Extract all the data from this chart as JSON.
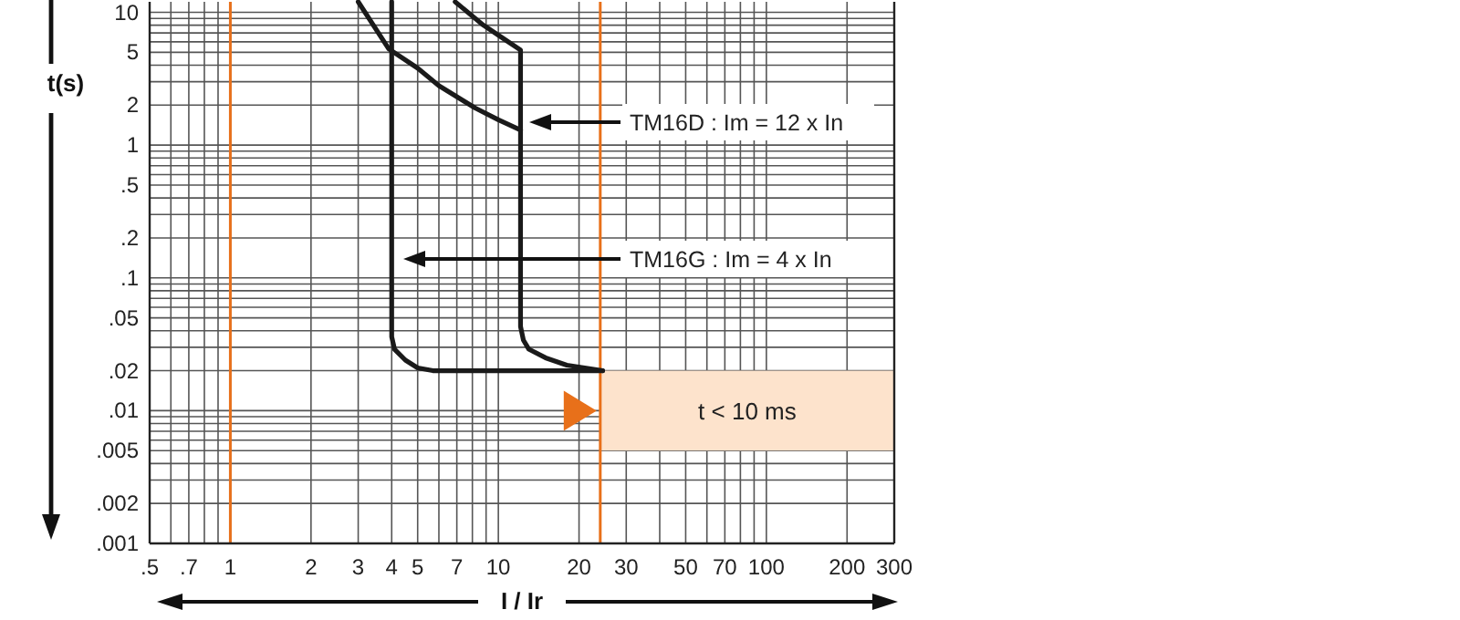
{
  "chart_data": {
    "type": "line",
    "xlabel": "I / Ir",
    "ylabel": "t(s)",
    "log": "xy",
    "grid": true,
    "marker": "none",
    "line_style": "solid",
    "xlim": [
      0.5,
      300
    ],
    "ylim": [
      0.001,
      12
    ],
    "xticks": [
      {
        "value": 0.5,
        "label": ".5"
      },
      {
        "value": 0.6,
        "label": null
      },
      {
        "value": 0.7,
        "label": ".7"
      },
      {
        "value": 0.8,
        "label": null
      },
      {
        "value": 0.9,
        "label": null
      },
      1,
      2,
      3,
      4,
      5,
      {
        "value": 6,
        "label": null
      },
      7,
      {
        "value": 8,
        "label": null
      },
      {
        "value": 9,
        "label": null
      },
      10,
      20,
      30,
      {
        "value": 40,
        "label": null
      },
      50,
      {
        "value": 60,
        "label": null
      },
      70,
      {
        "value": 80,
        "label": null
      },
      {
        "value": 90,
        "label": null
      },
      100,
      200,
      300
    ],
    "yticks": [
      {
        "value": 0.001,
        "label": ".001"
      },
      {
        "value": 0.002,
        "label": ".002"
      },
      {
        "value": 0.003,
        "label": null
      },
      {
        "value": 0.004,
        "label": null
      },
      {
        "value": 0.005,
        "label": ".005"
      },
      {
        "value": 0.006,
        "label": null
      },
      {
        "value": 0.007,
        "label": null
      },
      {
        "value": 0.008,
        "label": null
      },
      {
        "value": 0.009,
        "label": null
      },
      {
        "value": 0.01,
        "label": ".01"
      },
      {
        "value": 0.02,
        "label": ".02"
      },
      {
        "value": 0.03,
        "label": null
      },
      {
        "value": 0.04,
        "label": null
      },
      {
        "value": 0.05,
        "label": ".05"
      },
      {
        "value": 0.06,
        "label": null
      },
      {
        "value": 0.07,
        "label": null
      },
      {
        "value": 0.08,
        "label": null
      },
      {
        "value": 0.09,
        "label": null
      },
      {
        "value": 0.1,
        "label": ".1"
      },
      {
        "value": 0.2,
        "label": ".2"
      },
      {
        "value": 0.3,
        "label": null
      },
      {
        "value": 0.4,
        "label": null
      },
      {
        "value": 0.5,
        "label": ".5"
      },
      {
        "value": 0.6,
        "label": null
      },
      {
        "value": 0.7,
        "label": null
      },
      {
        "value": 0.8,
        "label": null
      },
      {
        "value": 0.9,
        "label": null
      },
      1,
      2,
      {
        "value": 3,
        "label": null
      },
      {
        "value": 4,
        "label": null
      },
      5,
      {
        "value": 6,
        "label": null
      },
      {
        "value": 7,
        "label": null
      },
      {
        "value": 8,
        "label": null
      },
      {
        "value": 9,
        "label": null
      },
      10
    ],
    "series": [
      {
        "color": "#1a1a1a",
        "x": [
          3.0,
          3.9,
          5.0,
          6.0,
          8.2,
          10,
          12.1
        ],
        "values": [
          12,
          5.3,
          3.8,
          2.8,
          1.9,
          1.55,
          1.3
        ]
      },
      {
        "color": "#1a1a1a",
        "x": [
          6.9,
          8.8,
          10.5,
          12.1,
          12.1,
          12.4,
          13,
          15,
          18,
          24.5
        ],
        "values": [
          12,
          8,
          6.3,
          5.2,
          0.043,
          0.034,
          0.029,
          0.025,
          0.022,
          0.02
        ]
      },
      {
        "color": "#1a1a1a",
        "x": [
          4,
          4,
          4.1,
          4.5,
          5,
          5.7,
          24.5
        ],
        "values": [
          12,
          0.036,
          0.029,
          0.024,
          0.021,
          0.02,
          0.02
        ]
      }
    ],
    "ref_lines": [
      {
        "axis": "x",
        "value": 1,
        "color": "#e8701a"
      },
      {
        "axis": "x",
        "value": 24,
        "color": "#e8701a"
      }
    ],
    "bands": [
      {
        "axis": "y",
        "from": 0.005,
        "to": 0.02,
        "label": "t < 10 ms",
        "color": "#fde3cc"
      }
    ],
    "annotations": [
      "TM16D : Im = 12 x In",
      "TM16G : Im = 4 x In"
    ]
  }
}
